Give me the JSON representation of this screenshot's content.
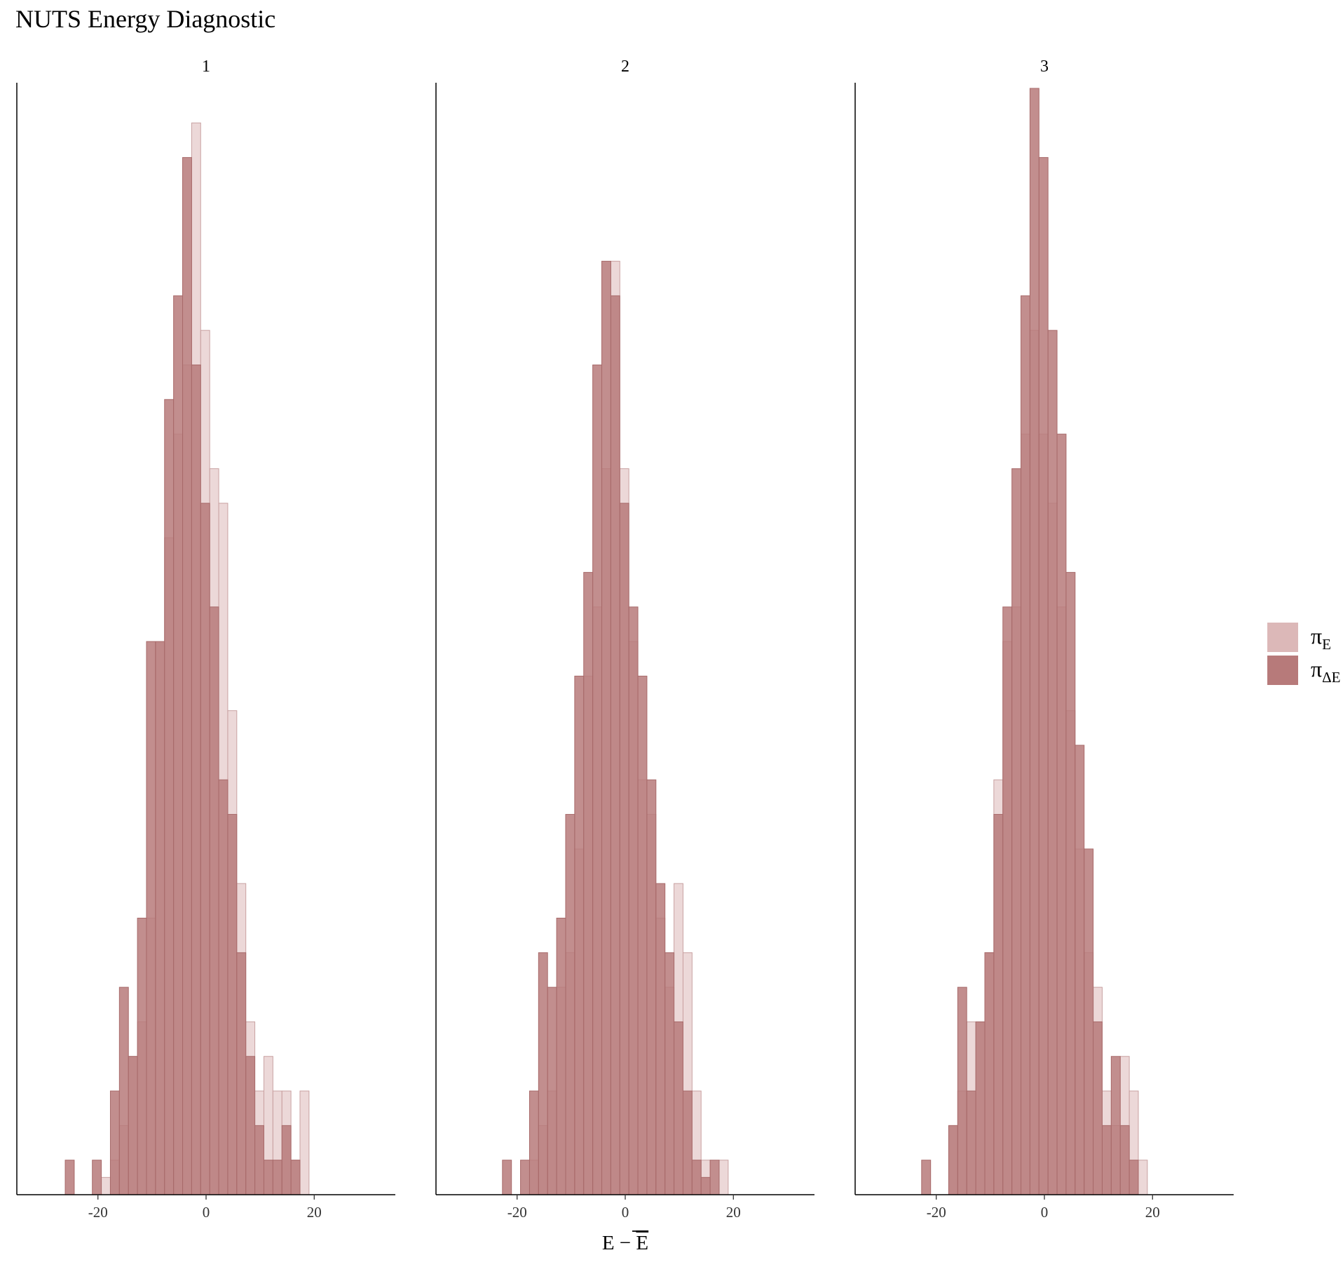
{
  "title": "NUTS Energy Diagnostic",
  "chart_data": {
    "type": "bar",
    "subtype": "overlaid histogram facets",
    "title": "NUTS Energy Diagnostic",
    "xlabel": "E − Ē",
    "xlabel_parts": {
      "main": "E − ",
      "bar": "E"
    },
    "ylabel": "",
    "xlim": [
      -35,
      35
    ],
    "x_ticks": [
      -20,
      0,
      20
    ],
    "x_tick_labels": [
      "-20",
      "0",
      "20"
    ],
    "bin_width": 1.67,
    "bin_start": -26.05,
    "grid": false,
    "legend_position": "right",
    "legend": [
      {
        "key": "pi_E",
        "symbol": "π",
        "sub": "E",
        "color": "#dcb8b8"
      },
      {
        "key": "pi_dE",
        "symbol": "π",
        "sub": "ΔE",
        "color": "#b77a7a"
      }
    ],
    "colors": {
      "pi_E_fill": "#dcb8b8",
      "pi_E_stroke": "#c9a2a2",
      "pi_dE_fill": "#b77a7a",
      "pi_dE_stroke": "#a86a6a",
      "axis": "#000000"
    },
    "facets": [
      {
        "label": "1",
        "pi_E": [
          0,
          0,
          0,
          0,
          0.5,
          1,
          2,
          4,
          5,
          8,
          16,
          19,
          22,
          24,
          31,
          25,
          21,
          20,
          14,
          9,
          5,
          3,
          4,
          3,
          3,
          1,
          3
        ],
        "pi_dE": [
          1,
          0,
          0,
          1,
          0,
          3,
          6,
          4,
          8,
          16,
          16,
          23,
          26,
          30,
          24,
          20,
          17,
          12,
          11,
          7,
          4,
          2,
          1,
          1,
          2,
          1,
          0
        ]
      },
      {
        "label": "2",
        "pi_E": [
          0,
          0,
          0,
          0,
          0,
          1,
          2,
          3,
          6,
          7,
          10,
          15,
          17,
          21,
          27,
          21,
          16,
          12,
          11,
          8,
          6,
          9,
          7,
          3,
          1,
          0,
          1
        ],
        "pi_dE": [
          0,
          0,
          1,
          0,
          1,
          3,
          7,
          6,
          8,
          11,
          15,
          18,
          24,
          27,
          26,
          20,
          17,
          15,
          12,
          9,
          7,
          5,
          3,
          1,
          0.5,
          1,
          0
        ]
      },
      {
        "label": "3",
        "pi_E": [
          0,
          0,
          0,
          0,
          0,
          2,
          3,
          5,
          5,
          7,
          12,
          16,
          17,
          22,
          25,
          22,
          20,
          17,
          14,
          10,
          7,
          6,
          3,
          2,
          4,
          3,
          1
        ],
        "pi_dE": [
          0,
          0,
          1,
          0,
          0,
          2,
          6,
          3,
          5,
          7,
          11,
          17,
          21,
          26,
          32,
          30,
          25,
          22,
          18,
          13,
          10,
          5,
          2,
          4,
          2,
          1,
          0
        ]
      }
    ]
  }
}
